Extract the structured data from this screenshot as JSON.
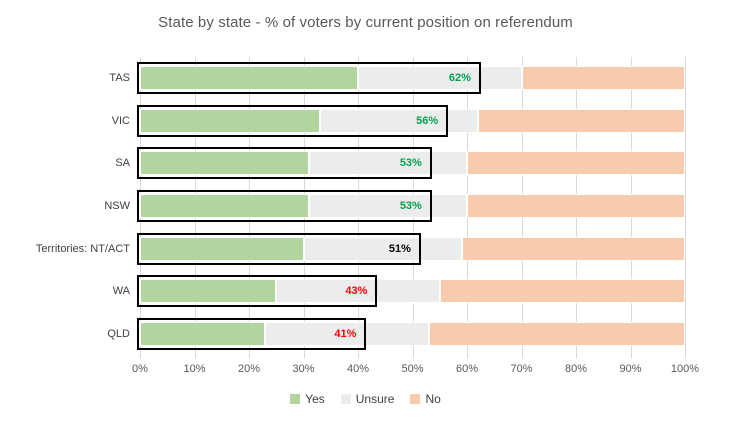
{
  "title": "State by state - % of voters by current position on referendum",
  "colors": {
    "yes": "#b2d5a0",
    "unsure": "#ececec",
    "no": "#f8cbad",
    "gridline": "#d9d9d9",
    "box_border": "#000000",
    "title_text": "#595959",
    "axis_text": "#595959",
    "category_text": "#404040",
    "label_green": "#00a44f",
    "label_red": "#ff0000",
    "label_black": "#000000"
  },
  "chart_data": {
    "type": "bar",
    "orientation": "horizontal",
    "stacked": true,
    "title": "State by state - % of voters by current position on referendum",
    "categories": [
      "TAS",
      "VIC",
      "SA",
      "NSW",
      "Territories: NT/ACT",
      "WA",
      "QLD"
    ],
    "series": [
      {
        "name": "Yes",
        "color": "#b2d5a0",
        "values": [
          40,
          33,
          31,
          31,
          30,
          25,
          23
        ]
      },
      {
        "name": "Unsure",
        "color": "#ececec",
        "values": [
          30,
          29,
          29,
          29,
          29,
          30,
          30
        ]
      },
      {
        "name": "No",
        "color": "#f8cbad",
        "values": [
          30,
          38,
          40,
          40,
          41,
          45,
          47
        ]
      }
    ],
    "highlight_boxes": [
      {
        "category": "TAS",
        "label": "62%",
        "value": 62,
        "label_color": "#00a44f"
      },
      {
        "category": "VIC",
        "label": "56%",
        "value": 56,
        "label_color": "#00a44f"
      },
      {
        "category": "SA",
        "label": "53%",
        "value": 53,
        "label_color": "#00a44f"
      },
      {
        "category": "NSW",
        "label": "53%",
        "value": 53,
        "label_color": "#00a44f"
      },
      {
        "category": "Territories: NT/ACT",
        "label": "51%",
        "value": 51,
        "label_color": "#000000"
      },
      {
        "category": "WA",
        "label": "43%",
        "value": 43,
        "label_color": "#ff0000"
      },
      {
        "category": "QLD",
        "label": "41%",
        "value": 41,
        "label_color": "#ff0000"
      }
    ],
    "xlim": [
      0,
      100
    ],
    "x_tick_labels": [
      "0%",
      "10%",
      "20%",
      "30%",
      "40%",
      "50%",
      "60%",
      "70%",
      "80%",
      "90%",
      "100%"
    ],
    "gridlines": "vertical",
    "legend_position": "bottom",
    "legend": [
      "Yes",
      "Unsure",
      "No"
    ]
  }
}
